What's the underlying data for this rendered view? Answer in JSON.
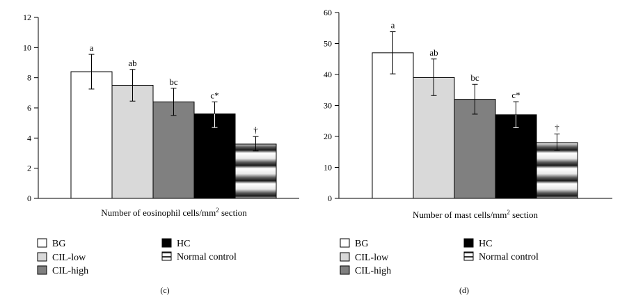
{
  "chart_data": [
    {
      "type": "bar",
      "panel_label": "(c)",
      "xlabel_main": "Number of eosinophil cells/mm",
      "xlabel_sup": "2",
      "xlabel_tail": " section",
      "ylabel": "",
      "ylim": [
        0,
        12
      ],
      "yticks": [
        0,
        2,
        4,
        6,
        8,
        10,
        12
      ],
      "categories": [
        "BG",
        "CIL-low",
        "CIL-high",
        "HC",
        "Normal control"
      ],
      "values": [
        8.4,
        7.5,
        6.4,
        5.6,
        3.6
      ],
      "error_low": [
        7.25,
        6.45,
        5.5,
        4.7,
        3.15
      ],
      "error_high": [
        9.55,
        8.55,
        7.3,
        6.4,
        4.1
      ],
      "annotations": [
        "a",
        "ab",
        "bc",
        "c*",
        "†"
      ]
    },
    {
      "type": "bar",
      "panel_label": "(d)",
      "xlabel_main": "Number of mast cells/mm",
      "xlabel_sup": "2",
      "xlabel_tail": " section",
      "ylabel": "",
      "ylim": [
        0,
        60
      ],
      "yticks": [
        0,
        10,
        20,
        30,
        40,
        50,
        60
      ],
      "categories": [
        "BG",
        "CIL-low",
        "CIL-high",
        "HC",
        "Normal control"
      ],
      "values": [
        47,
        39,
        32,
        27,
        18
      ],
      "error_low": [
        40.2,
        33.2,
        27.2,
        22.8,
        15.5
      ],
      "error_high": [
        53.8,
        45.0,
        36.8,
        31.2,
        20.8
      ],
      "annotations": [
        "a",
        "ab",
        "bc",
        "c*",
        "†"
      ]
    }
  ],
  "legend": {
    "items": [
      {
        "label": "BG",
        "style": "white"
      },
      {
        "label": "CIL-low",
        "style": "lightgray"
      },
      {
        "label": "CIL-high",
        "style": "darkgray"
      },
      {
        "label": "HC",
        "style": "black"
      },
      {
        "label": "Normal control",
        "style": "striped"
      }
    ]
  },
  "colors": {
    "white": "#ffffff",
    "lightgray": "#d9d9d9",
    "darkgray": "#808080",
    "black": "#000000",
    "axis": "#000000"
  }
}
